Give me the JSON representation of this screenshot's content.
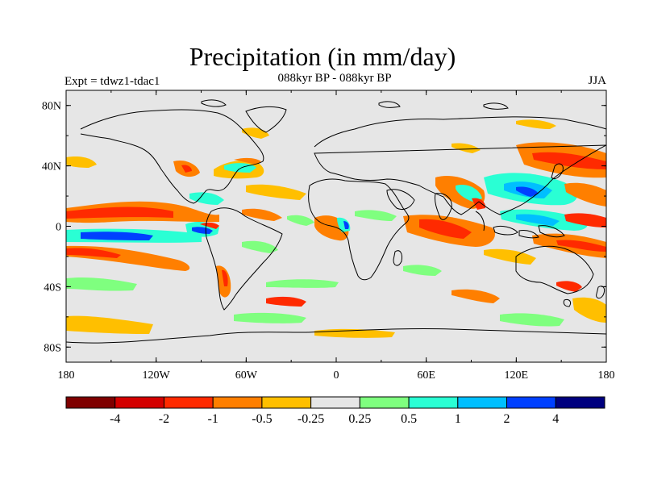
{
  "header": {
    "title": "Precipitation (in mm/day)",
    "experiment": "Expt = tdwz1-tdac1",
    "subtitle": "088kyr BP - 088kyr BP",
    "season": "JJA"
  },
  "map": {
    "background_color": "#e6e6e6",
    "lat_labels": [
      "80N",
      "40N",
      "0",
      "40S",
      "80S"
    ],
    "lat_values": [
      80,
      40,
      0,
      -40,
      -80
    ],
    "lon_labels": [
      "180",
      "120W",
      "60W",
      "0",
      "60E",
      "120E",
      "180"
    ],
    "lon_values": [
      -180,
      -120,
      -60,
      0,
      60,
      120,
      180
    ]
  },
  "colorbar": {
    "colors": [
      "#7f0000",
      "#d40000",
      "#ff2a00",
      "#ff7f00",
      "#ffbf00",
      "#e6e6e6",
      "#7fff7f",
      "#2affd4",
      "#00bfff",
      "#0040ff",
      "#00007f"
    ],
    "labels": [
      "-4",
      "-2",
      "-1",
      "-0.5",
      "-0.25",
      "0.25",
      "0.5",
      "1",
      "2",
      "4"
    ]
  }
}
